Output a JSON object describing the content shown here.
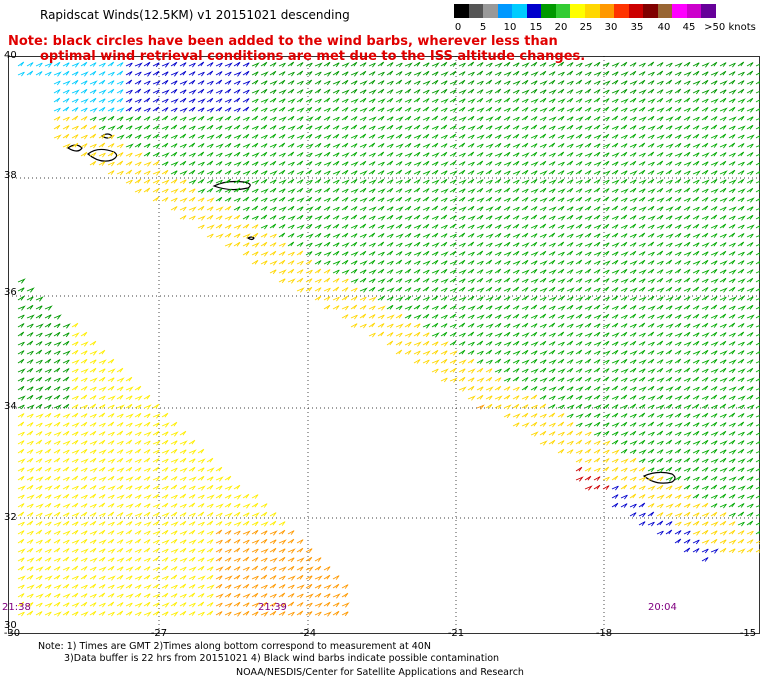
{
  "title": "Rapidscat Winds(12.5KM) v1 20151021 descending",
  "note_line1": "Note: black circles have been added to the wind barbs, wherever less than",
  "note_line2": "optimal wind retrieval conditions are met due to the ISS altitude changes.",
  "legend": {
    "unit": "knots",
    "colors": [
      "#000000",
      "#555555",
      "#999999",
      "#0099ff",
      "#00ccff",
      "#0000cc",
      "#009900",
      "#33cc33",
      "#ffff00",
      "#ffd700",
      "#ff9900",
      "#ff3300",
      "#cc0000",
      "#800000",
      "#996633",
      "#ff00ff",
      "#cc00cc",
      "#660099"
    ],
    "labels": [
      "0",
      "5",
      "10",
      "15",
      "20",
      "25",
      "30",
      "35",
      "40",
      "45",
      ">50 knots"
    ]
  },
  "lat_labels": [
    "40",
    "38",
    "36",
    "34",
    "32",
    "30"
  ],
  "lon_labels": [
    "-30",
    "-27",
    "-24",
    "-21",
    "-18",
    "-15"
  ],
  "time_labels": [
    "21:38",
    "21:39",
    "20:04"
  ],
  "footer_line1": "Note: 1) Times are GMT 2)Times along bottom correspond to measurement at 40N",
  "footer_line2": "3)Data buffer is 22 hrs from 20151021 4) Black wind barbs indicate possible contamination",
  "credit": "NOAA/NESDIS/Center for Satellite Applications and Research"
}
